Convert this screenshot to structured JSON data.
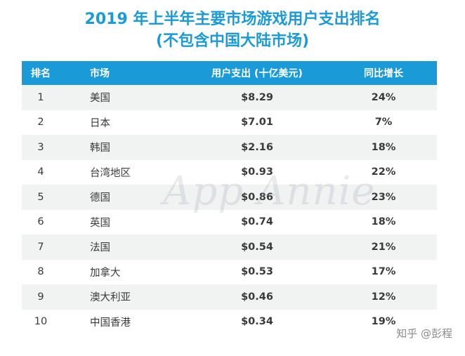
{
  "title_line1": "2019 年上半年主要市场游戏用户支出排名",
  "title_line2": "(不包含中国大陆市场)",
  "watermark": "App Annie",
  "credit": "知乎 @彭程",
  "chart_data": {
    "type": "table",
    "columns": [
      "排名",
      "市场",
      "用户支出 (十亿美元)",
      "同比增长"
    ],
    "rows": [
      {
        "rank": "1",
        "market": "美国",
        "spend": "$8.29",
        "growth": "24%"
      },
      {
        "rank": "2",
        "market": "日本",
        "spend": "$7.01",
        "growth": "7%"
      },
      {
        "rank": "3",
        "market": "韩国",
        "spend": "$2.16",
        "growth": "18%"
      },
      {
        "rank": "4",
        "market": "台湾地区",
        "spend": "$0.93",
        "growth": "22%"
      },
      {
        "rank": "5",
        "market": "德国",
        "spend": "$0.86",
        "growth": "23%"
      },
      {
        "rank": "6",
        "market": "英国",
        "spend": "$0.74",
        "growth": "18%"
      },
      {
        "rank": "7",
        "market": "法国",
        "spend": "$0.54",
        "growth": "21%"
      },
      {
        "rank": "8",
        "market": "加拿大",
        "spend": "$0.53",
        "growth": "17%"
      },
      {
        "rank": "9",
        "market": "澳大利亚",
        "spend": "$0.46",
        "growth": "12%"
      },
      {
        "rank": "10",
        "market": "中国香港",
        "spend": "$0.34",
        "growth": "19%"
      }
    ]
  }
}
